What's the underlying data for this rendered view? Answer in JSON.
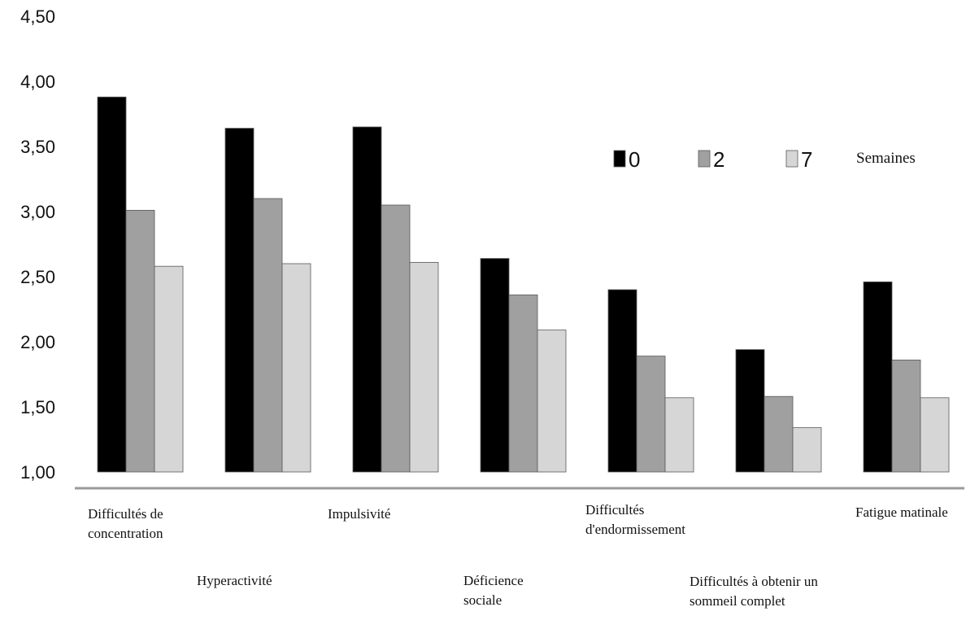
{
  "chart_data": {
    "type": "bar",
    "categories": [
      [
        "Difficultés de",
        "concentration"
      ],
      [
        "Hyperactivité"
      ],
      [
        "Impulsivité"
      ],
      [
        "Déficience",
        "sociale"
      ],
      [
        "Difficultés",
        "d'endormissement"
      ],
      [
        "Difficultés à obtenir un",
        "sommeil complet"
      ],
      [
        "Fatigue matinale"
      ]
    ],
    "series": [
      {
        "name": "0",
        "color": "#000000",
        "values": [
          3.88,
          3.64,
          3.65,
          2.64,
          2.4,
          1.94,
          2.46
        ]
      },
      {
        "name": "2",
        "color": "#a0a0a0",
        "values": [
          3.01,
          3.1,
          3.05,
          2.36,
          1.89,
          1.58,
          1.86
        ]
      },
      {
        "name": "7",
        "color": "#d6d6d6",
        "values": [
          2.58,
          2.6,
          2.61,
          2.09,
          1.57,
          1.34,
          1.57
        ]
      }
    ],
    "legend_title": "Semaines",
    "y_ticks": [
      "1,00",
      "1,50",
      "2,00",
      "2,50",
      "3,00",
      "3,50",
      "4,00",
      "4,50"
    ],
    "ylim": [
      1.0,
      4.5
    ],
    "title": "",
    "xlabel": "",
    "ylabel": "",
    "grid": false,
    "legend_position": "top-right"
  }
}
